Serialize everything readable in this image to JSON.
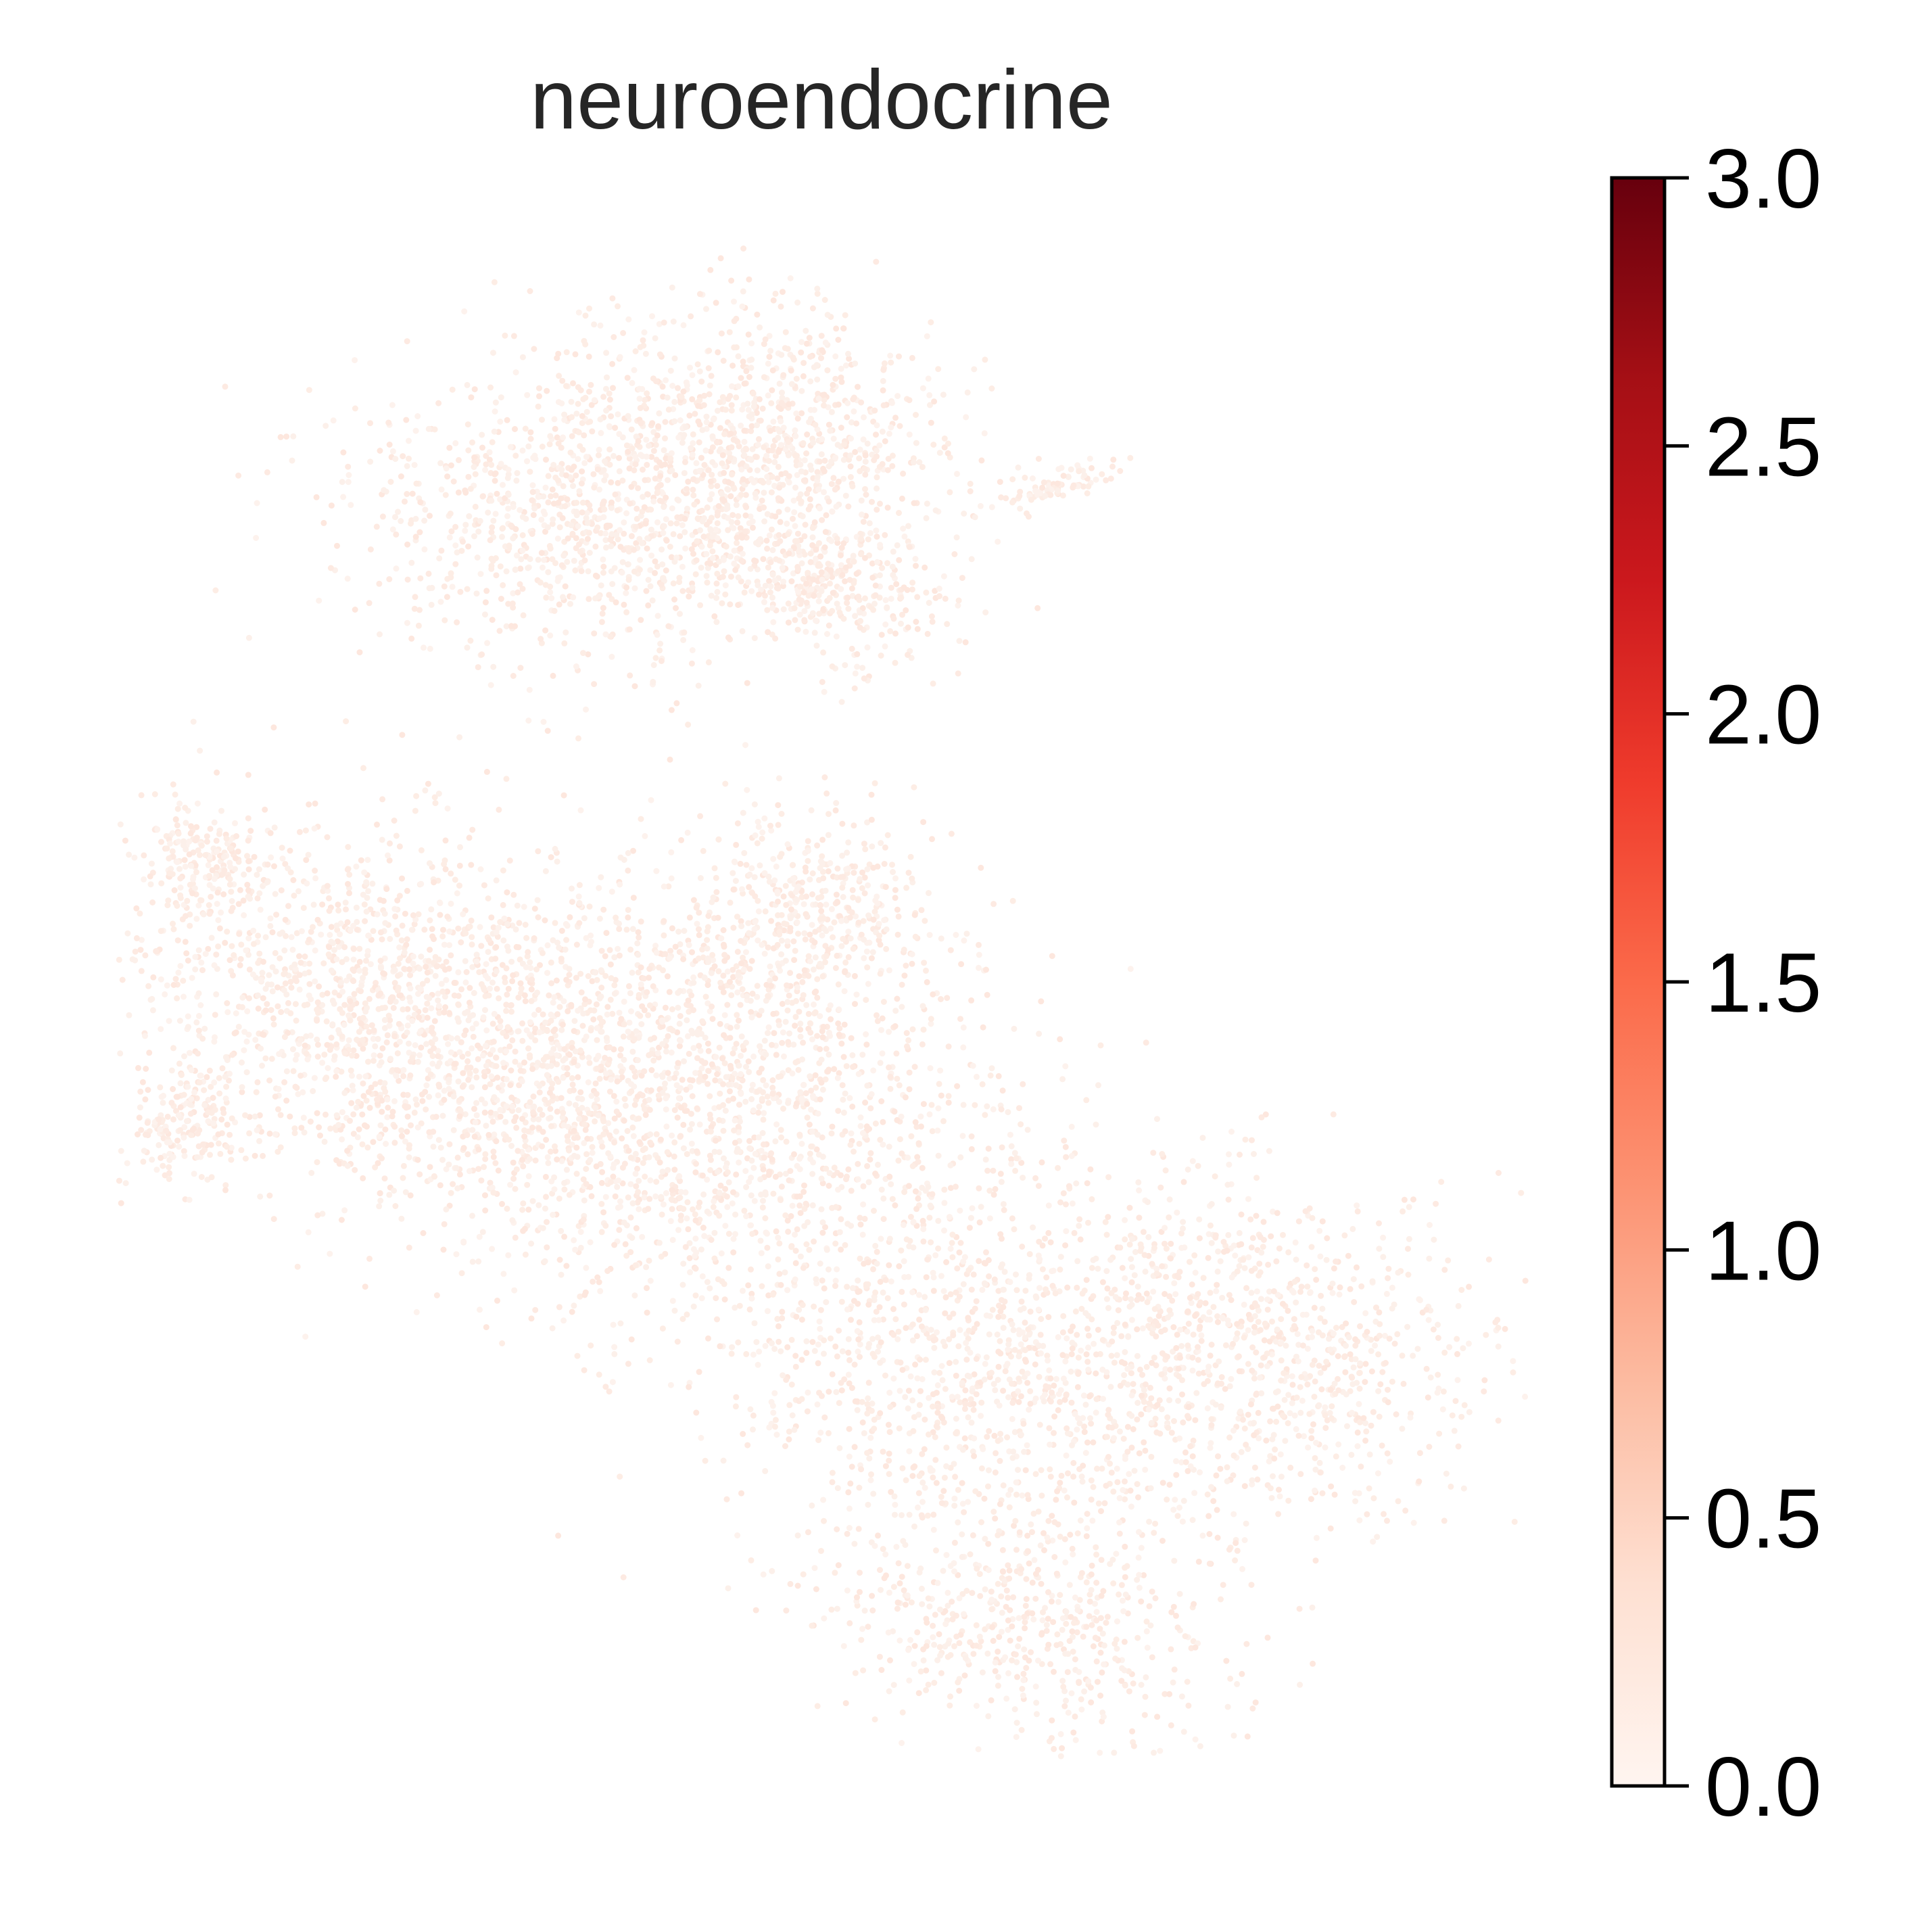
{
  "chart_data": {
    "type": "scatter",
    "title": "neuroendocrine",
    "xlabel": "",
    "ylabel": "",
    "axes_visible": false,
    "grid": false,
    "marker_color_value": 0.0,
    "point_count_estimate": 9000,
    "colorbar": {
      "colormap": "Reds",
      "range": [
        0.0,
        3.0
      ],
      "tick_values": [
        0.0,
        0.5,
        1.0,
        1.5,
        2.0,
        2.5,
        3.0
      ],
      "tick_labels": [
        "0.0",
        "0.5",
        "1.0",
        "1.5",
        "2.0",
        "2.5",
        "3.0"
      ],
      "stops": [
        "#fff5f0",
        "#fee0d2",
        "#fcbba1",
        "#fc9272",
        "#fb6a4a",
        "#ef3b2c",
        "#cb181d",
        "#a50f15",
        "#67000d"
      ],
      "placement": "right"
    },
    "point_colors": [
      "#fdede5",
      "#fdeae2",
      "#fcf0ea",
      "#fde7de",
      "#fdf2ed"
    ]
  }
}
